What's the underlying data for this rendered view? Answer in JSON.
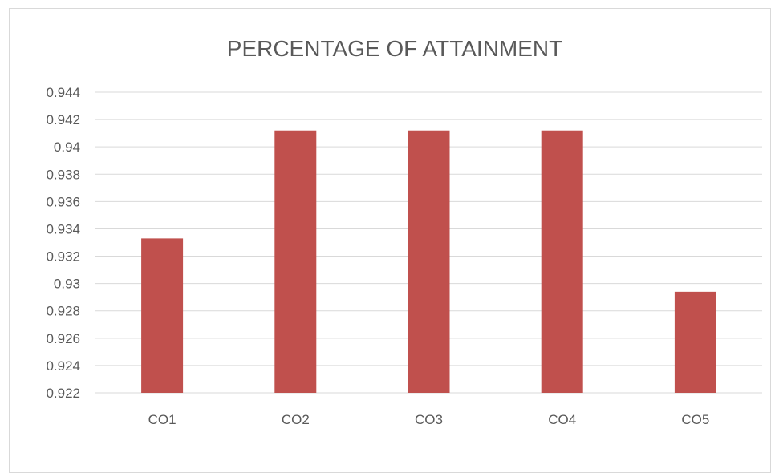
{
  "chart_data": {
    "type": "bar",
    "title": "PERCENTAGE OF ATTAINMENT",
    "categories": [
      "CO1",
      "CO2",
      "CO3",
      "CO4",
      "CO5"
    ],
    "values": [
      0.9333,
      0.9412,
      0.9412,
      0.9412,
      0.9294
    ],
    "y_ticks": [
      "0.922",
      "0.924",
      "0.926",
      "0.928",
      "0.93",
      "0.932",
      "0.934",
      "0.936",
      "0.938",
      "0.94",
      "0.942",
      "0.944"
    ],
    "ylim": [
      0.922,
      0.944
    ],
    "xlabel": "",
    "ylabel": "",
    "grid": true,
    "legend": "none",
    "bar_color": "#c0504d",
    "gridline_color": "#d9d9d9",
    "text_color": "#595959"
  }
}
